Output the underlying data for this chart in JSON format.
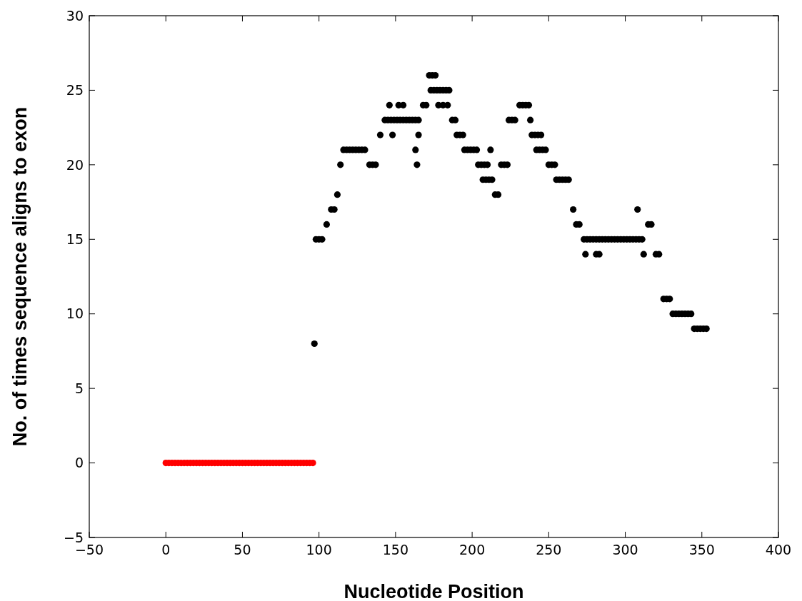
{
  "chart_data": {
    "type": "scatter",
    "xlabel": "Nucleotide Position",
    "ylabel": "No. of times sequence aligns to exon",
    "xlim": [
      -50,
      400
    ],
    "xticks": [
      -50,
      0,
      50,
      100,
      150,
      200,
      250,
      300,
      350,
      400
    ],
    "ylim": [
      -5,
      30
    ],
    "yticks": [
      -5,
      0,
      5,
      10,
      15,
      20,
      25,
      30
    ],
    "grid": false,
    "marker": "circle",
    "series": [
      {
        "color": "#ff0000",
        "x": [
          0,
          2,
          4,
          6,
          8,
          10,
          12,
          14,
          16,
          18,
          20,
          22,
          24,
          26,
          28,
          30,
          32,
          34,
          36,
          38,
          40,
          42,
          44,
          46,
          48,
          50,
          52,
          54,
          56,
          58,
          60,
          62,
          64,
          66,
          68,
          70,
          72,
          74,
          76,
          78,
          80,
          82,
          84,
          86,
          88,
          90,
          92,
          94,
          96
        ],
        "values": [
          0,
          0,
          0,
          0,
          0,
          0,
          0,
          0,
          0,
          0,
          0,
          0,
          0,
          0,
          0,
          0,
          0,
          0,
          0,
          0,
          0,
          0,
          0,
          0,
          0,
          0,
          0,
          0,
          0,
          0,
          0,
          0,
          0,
          0,
          0,
          0,
          0,
          0,
          0,
          0,
          0,
          0,
          0,
          0,
          0,
          0,
          0,
          0,
          0
        ]
      },
      {
        "color": "#000000",
        "x": [
          97,
          98,
          100,
          102,
          105,
          108,
          110,
          112,
          114,
          116,
          118,
          120,
          122,
          124,
          126,
          128,
          130,
          133,
          135,
          137,
          140,
          143,
          145,
          147,
          149,
          151,
          153,
          155,
          157,
          159,
          161,
          163,
          165,
          146,
          148,
          152,
          155,
          163,
          164,
          165,
          168,
          170,
          172,
          174,
          176,
          173,
          175,
          177,
          179,
          181,
          183,
          185,
          178,
          181,
          184,
          187,
          189,
          190,
          192,
          194,
          195,
          197,
          199,
          201,
          203,
          204,
          206,
          208,
          210,
          207,
          209,
          211,
          213,
          212,
          215,
          217,
          219,
          221,
          223,
          224,
          226,
          228,
          231,
          233,
          235,
          237,
          238,
          239,
          241,
          243,
          245,
          242,
          244,
          246,
          248,
          250,
          252,
          254,
          255,
          257,
          259,
          261,
          263,
          266,
          268,
          270,
          273,
          275,
          277,
          279,
          281,
          283,
          285,
          287,
          289,
          291,
          293,
          295,
          297,
          299,
          301,
          303,
          305,
          307,
          309,
          311,
          274,
          281,
          283,
          308,
          312,
          315,
          317,
          320,
          322,
          325,
          327,
          329,
          331,
          333,
          335,
          337,
          339,
          341,
          343,
          345,
          347,
          349,
          351,
          353
        ],
        "values": [
          8,
          15,
          15,
          15,
          16,
          17,
          17,
          18,
          20,
          21,
          21,
          21,
          21,
          21,
          21,
          21,
          21,
          20,
          20,
          20,
          22,
          23,
          23,
          23,
          23,
          23,
          23,
          23,
          23,
          23,
          23,
          23,
          23,
          24,
          22,
          24,
          24,
          21,
          20,
          22,
          24,
          24,
          26,
          26,
          26,
          25,
          25,
          25,
          25,
          25,
          25,
          25,
          24,
          24,
          24,
          23,
          23,
          22,
          22,
          22,
          21,
          21,
          21,
          21,
          21,
          20,
          20,
          20,
          20,
          19,
          19,
          19,
          19,
          21,
          18,
          18,
          20,
          20,
          20,
          23,
          23,
          23,
          24,
          24,
          24,
          24,
          23,
          22,
          22,
          22,
          22,
          21,
          21,
          21,
          21,
          20,
          20,
          20,
          19,
          19,
          19,
          19,
          19,
          17,
          16,
          16,
          15,
          15,
          15,
          15,
          15,
          15,
          15,
          15,
          15,
          15,
          15,
          15,
          15,
          15,
          15,
          15,
          15,
          15,
          15,
          15,
          14,
          14,
          14,
          17,
          14,
          16,
          16,
          14,
          14,
          11,
          11,
          11,
          10,
          10,
          10,
          10,
          10,
          10,
          10,
          9,
          9,
          9,
          9,
          9
        ]
      }
    ]
  }
}
